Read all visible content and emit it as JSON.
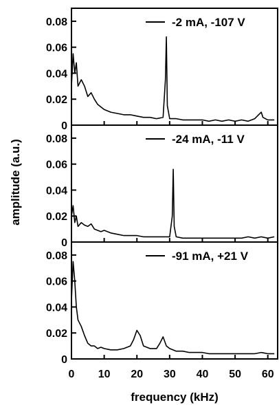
{
  "chart_data": {
    "type": "line",
    "xlabel": "frequency (kHz)",
    "ylabel": "amplitude (a.u.)",
    "xlim": [
      0,
      63
    ],
    "ylim": [
      0,
      0.09
    ],
    "x_ticks": [
      0,
      10,
      20,
      30,
      40,
      50,
      60
    ],
    "x_tick_labels": [
      "0",
      "10",
      "20",
      "30",
      "40",
      "50",
      "60"
    ],
    "y_ticks": [
      0,
      0.02,
      0.04,
      0.06,
      0.08
    ],
    "y_tick_labels": [
      "0",
      "0.02",
      "0.04",
      "0.06",
      "0.08"
    ],
    "color": "#000000",
    "legend_position": "top-right",
    "panels": [
      {
        "legend": "-2 mA, -107 V",
        "series": [
          {
            "x": [
              0,
              0.5,
              1,
              1.5,
              2,
              3,
              4,
              5,
              6,
              7,
              8,
              9,
              10,
              12,
              14,
              16,
              18,
              20,
              22,
              24,
              26,
              28,
              28.7,
              29,
              29.3,
              30,
              32,
              34,
              36,
              38,
              40,
              42,
              44,
              46,
              48,
              50,
              52,
              54,
              56,
              58,
              58.5,
              60,
              62
            ],
            "y": [
              0.03,
              0.055,
              0.04,
              0.048,
              0.03,
              0.035,
              0.03,
              0.022,
              0.025,
              0.02,
              0.016,
              0.014,
              0.012,
              0.01,
              0.009,
              0.008,
              0.008,
              0.007,
              0.006,
              0.006,
              0.005,
              0.006,
              0.035,
              0.068,
              0.015,
              0.005,
              0.005,
              0.004,
              0.004,
              0.004,
              0.004,
              0.003,
              0.004,
              0.003,
              0.004,
              0.003,
              0.004,
              0.003,
              0.005,
              0.01,
              0.006,
              0.004,
              0.004
            ]
          }
        ]
      },
      {
        "legend": "-24 mA, -11 V",
        "series": [
          {
            "x": [
              0,
              0.5,
              1,
              1.5,
              2,
              3,
              4,
              5,
              6,
              7,
              8,
              9,
              10,
              12,
              14,
              16,
              18,
              20,
              22,
              24,
              26,
              28,
              30,
              30.8,
              31.1,
              31.4,
              32,
              34,
              36,
              38,
              40,
              42,
              44,
              46,
              48,
              50,
              52,
              54,
              56,
              58,
              60,
              62
            ],
            "y": [
              0.02,
              0.028,
              0.015,
              0.02,
              0.012,
              0.015,
              0.013,
              0.012,
              0.014,
              0.01,
              0.009,
              0.008,
              0.009,
              0.007,
              0.006,
              0.005,
              0.005,
              0.005,
              0.004,
              0.004,
              0.004,
              0.004,
              0.004,
              0.02,
              0.056,
              0.012,
              0.004,
              0.003,
              0.003,
              0.003,
              0.003,
              0.003,
              0.003,
              0.003,
              0.003,
              0.003,
              0.003,
              0.004,
              0.003,
              0.004,
              0.003,
              0.004
            ]
          }
        ]
      },
      {
        "legend": "-91 mA, +21 V",
        "series": [
          {
            "x": [
              0,
              0.5,
              1,
              1.5,
              2,
              3,
              4,
              5,
              6,
              7,
              8,
              9,
              10,
              12,
              14,
              16,
              18,
              19,
              20,
              21,
              22,
              24,
              26,
              27,
              28,
              29,
              30,
              32,
              34,
              36,
              38,
              40,
              42,
              44,
              46,
              48,
              50,
              52,
              54,
              56,
              58,
              60,
              62
            ],
            "y": [
              0.045,
              0.075,
              0.06,
              0.04,
              0.03,
              0.025,
              0.018,
              0.012,
              0.01,
              0.01,
              0.008,
              0.009,
              0.008,
              0.007,
              0.007,
              0.008,
              0.01,
              0.015,
              0.022,
              0.018,
              0.01,
              0.008,
              0.008,
              0.012,
              0.017,
              0.01,
              0.008,
              0.006,
              0.006,
              0.005,
              0.005,
              0.005,
              0.004,
              0.004,
              0.004,
              0.004,
              0.004,
              0.004,
              0.004,
              0.004,
              0.005,
              0.004,
              0.004
            ]
          }
        ]
      }
    ]
  }
}
